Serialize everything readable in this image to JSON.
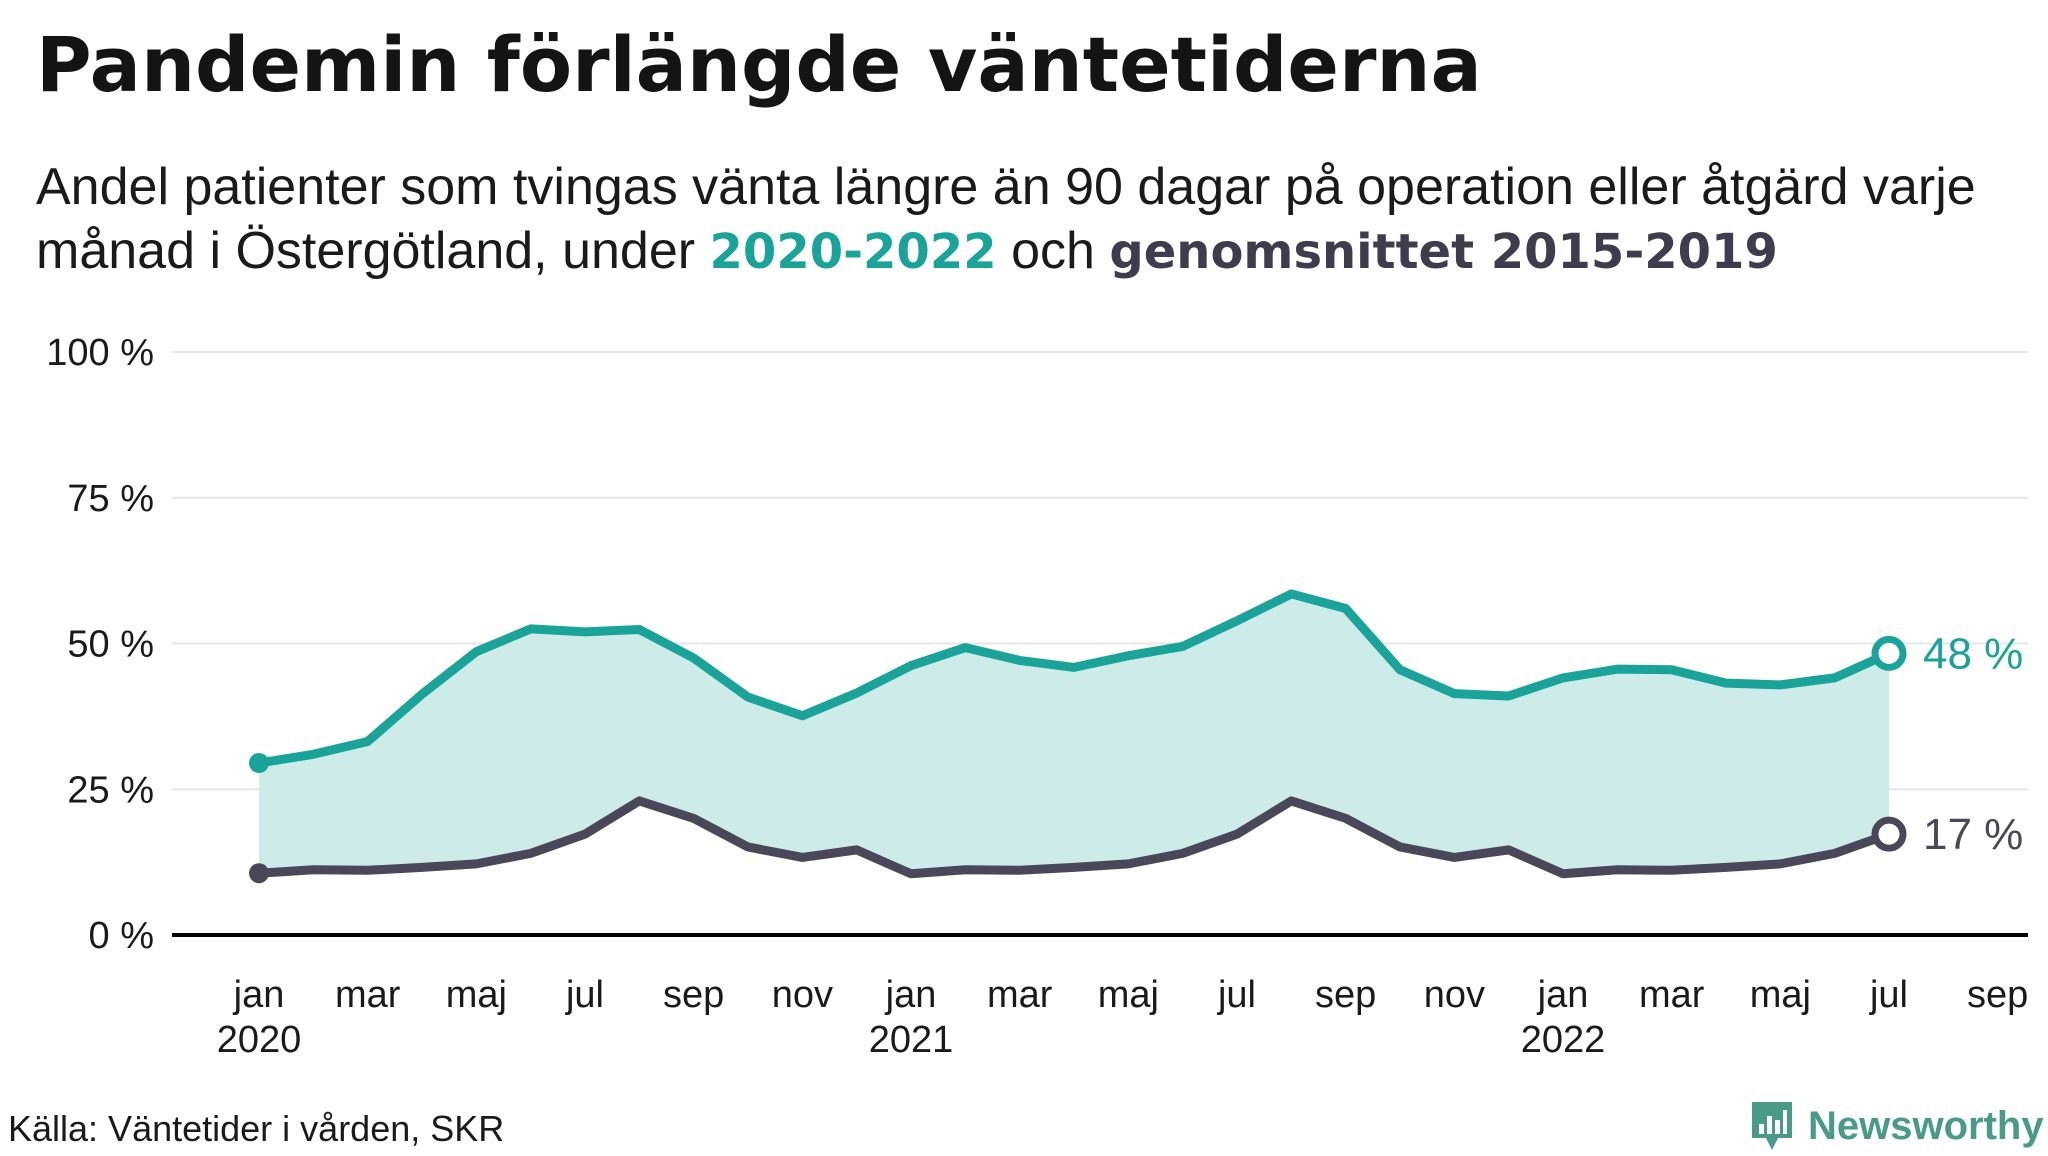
{
  "title": "Pandemin förlängde väntetiderna",
  "subtitle": {
    "lead": "Andel patienter som tvingas vänta längre än 90 dagar på operation eller åtgärd varje månad i Östergötland, under ",
    "highlight_current": "2020-2022",
    "middle": " och ",
    "highlight_avg": "genomsnittet 2015-2019"
  },
  "source": "Källa: Väntetider i vården, SKR",
  "brand": "Newsworthy",
  "colors": {
    "current": "#1aa399",
    "current_fill": "#cdece9",
    "average": "#4a4858",
    "grid": "#e6e6e6",
    "axis": "#000000"
  },
  "chart_data": {
    "type": "line",
    "title": "Pandemin förlängde väntetiderna",
    "xlabel": "",
    "ylabel": "",
    "ylim": [
      0,
      100
    ],
    "yticks": [
      0,
      25,
      50,
      75,
      100
    ],
    "ytick_labels": [
      "0 %",
      "25 %",
      "50 %",
      "75 %",
      "100 %"
    ],
    "xtick_labels": [
      {
        "label": "jan",
        "year": "2020",
        "month_index": 0
      },
      {
        "label": "mar",
        "year": "",
        "month_index": 2
      },
      {
        "label": "maj",
        "year": "",
        "month_index": 4
      },
      {
        "label": "jul",
        "year": "",
        "month_index": 6
      },
      {
        "label": "sep",
        "year": "",
        "month_index": 8
      },
      {
        "label": "nov",
        "year": "",
        "month_index": 10
      },
      {
        "label": "jan",
        "year": "2021",
        "month_index": 12
      },
      {
        "label": "mar",
        "year": "",
        "month_index": 14
      },
      {
        "label": "maj",
        "year": "",
        "month_index": 16
      },
      {
        "label": "jul",
        "year": "",
        "month_index": 18
      },
      {
        "label": "sep",
        "year": "",
        "month_index": 20
      },
      {
        "label": "nov",
        "year": "",
        "month_index": 22
      },
      {
        "label": "jan",
        "year": "2022",
        "month_index": 24
      },
      {
        "label": "mar",
        "year": "",
        "month_index": 26
      },
      {
        "label": "maj",
        "year": "",
        "month_index": 28
      },
      {
        "label": "jul",
        "year": "",
        "month_index": 30
      },
      {
        "label": "sep",
        "year": "",
        "month_index": 32
      }
    ],
    "x_month_range": [
      0,
      32
    ],
    "fill_between": true,
    "series": [
      {
        "name": "2020-2022",
        "end_label": "48 %",
        "values": [
          29.5,
          31,
          33.2,
          41.3,
          48.6,
          52.5,
          52,
          52.4,
          47.5,
          40.8,
          37.6,
          41.5,
          46.2,
          49.3,
          47.1,
          45.9,
          47.9,
          49.5,
          53.9,
          58.5,
          56,
          45.5,
          41.4,
          41,
          44.1,
          45.6,
          45.5,
          43.2,
          42.9,
          44.1,
          48.3
        ]
      },
      {
        "name": "genomsnittet 2015-2019",
        "end_label": "17 %",
        "values": [
          10.6,
          11.2,
          11.1,
          11.6,
          12.2,
          14,
          17.3,
          23,
          20,
          15.1,
          13.3,
          14.6,
          10.5,
          11.2,
          11.1,
          11.6,
          12.2,
          14,
          17.3,
          23,
          20,
          15.1,
          13.3,
          14.6,
          10.5,
          11.2,
          11.1,
          11.6,
          12.2,
          14,
          17.3
        ]
      }
    ]
  }
}
